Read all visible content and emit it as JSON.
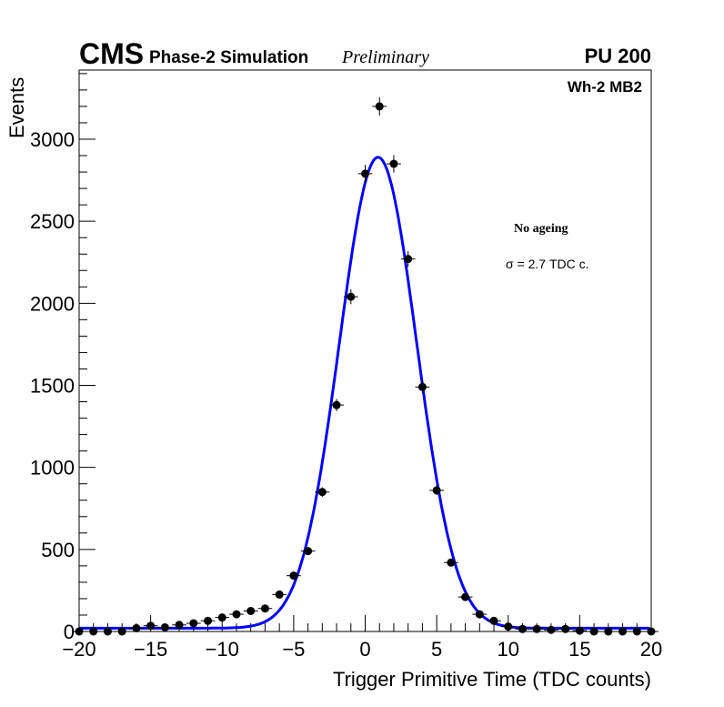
{
  "chart_data": {
    "type": "scatter",
    "title": "",
    "header": {
      "experiment": "CMS",
      "subtitle": "Phase-2 Simulation",
      "status": "Preliminary",
      "pileup": "PU 200"
    },
    "category_label": "Wh-2 MB2",
    "annotations": [
      "No ageing",
      "σ = 2.7 TDC c."
    ],
    "xlabel": "Trigger Primitive Time (TDC counts)",
    "ylabel": "Events",
    "xlim": [
      -20,
      20
    ],
    "ylim": [
      0,
      3400
    ],
    "xticks": [
      -20,
      -15,
      -10,
      -5,
      0,
      5,
      10,
      15,
      20
    ],
    "xtick_labels": [
      "−20",
      "−15",
      "−10",
      "−5",
      "0",
      "5",
      "10",
      "15",
      "20"
    ],
    "yticks": [
      0,
      500,
      1000,
      1500,
      2000,
      2500,
      3000
    ],
    "ytick_labels": [
      "0",
      "500",
      "1000",
      "1500",
      "2000",
      "2500",
      "3000"
    ],
    "x": [
      -20,
      -19,
      -18,
      -17,
      -16,
      -15,
      -14,
      -13,
      -12,
      -11,
      -10,
      -9,
      -8,
      -7,
      -6,
      -5,
      -4,
      -3,
      -2,
      -1,
      0,
      1,
      2,
      3,
      4,
      5,
      6,
      7,
      8,
      9,
      10,
      11,
      12,
      13,
      14,
      15,
      16,
      17,
      18,
      19,
      20
    ],
    "y": [
      0,
      0,
      0,
      0,
      20,
      35,
      25,
      40,
      50,
      65,
      85,
      105,
      125,
      140,
      225,
      340,
      490,
      850,
      1380,
      2040,
      2790,
      3200,
      2850,
      2270,
      1490,
      860,
      420,
      210,
      105,
      65,
      30,
      15,
      15,
      10,
      15,
      5,
      0,
      0,
      0,
      0,
      0
    ],
    "fit": {
      "function": "gaussian+constant",
      "amplitude": 2870,
      "mean": 0.9,
      "sigma": 2.7,
      "constant": 20,
      "color": "#0000ff"
    },
    "marker_color": "#000000"
  }
}
